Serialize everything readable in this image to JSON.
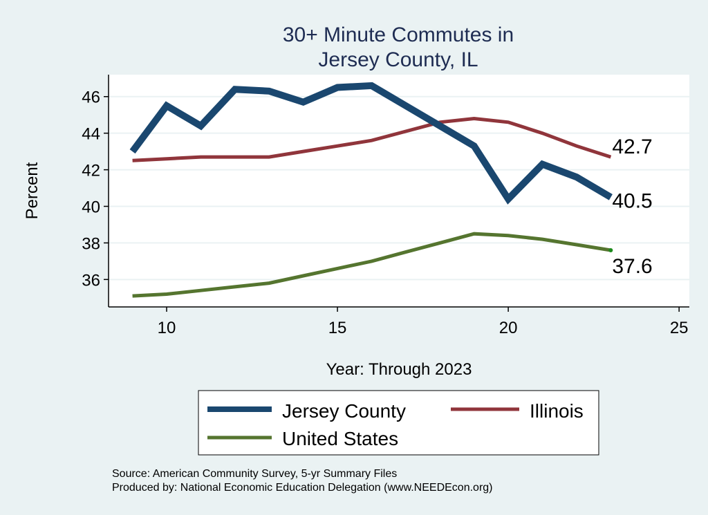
{
  "chart_data": {
    "type": "line",
    "title": [
      "30+ Minute Commutes in",
      "Jersey County, IL"
    ],
    "xlabel": "Year: Through 2023",
    "ylabel": "Percent",
    "xlim": [
      8.3,
      25.3
    ],
    "ylim": [
      34.5,
      47.2
    ],
    "xticks": [
      10,
      15,
      20,
      25
    ],
    "yticks": [
      36,
      38,
      40,
      42,
      44,
      46
    ],
    "grid": true,
    "x": [
      9,
      10,
      11,
      12,
      13,
      14,
      15,
      16,
      17,
      18,
      19,
      20,
      21,
      22,
      23
    ],
    "series": [
      {
        "name": "Jersey County",
        "color": "#1a476f",
        "values": [
          43.0,
          45.5,
          44.4,
          46.4,
          46.3,
          45.7,
          46.5,
          46.6,
          45.5,
          44.4,
          43.3,
          40.4,
          42.3,
          41.6,
          40.5
        ],
        "end_label": "40.5"
      },
      {
        "name": "Illinois",
        "color": "#90353b",
        "values": [
          42.5,
          42.6,
          42.7,
          42.7,
          42.7,
          43.0,
          43.3,
          43.6,
          44.1,
          44.6,
          44.8,
          44.6,
          44.0,
          43.3,
          42.7
        ],
        "end_label": "42.7"
      },
      {
        "name": "United States",
        "color": "#55752f",
        "values": [
          35.1,
          35.2,
          35.4,
          35.6,
          35.8,
          36.2,
          36.6,
          37.0,
          37.5,
          38.0,
          38.5,
          38.4,
          38.2,
          37.9,
          37.6
        ],
        "end_label": "37.6"
      }
    ],
    "legend": {
      "position": "bottom",
      "entries": [
        "Jersey County",
        "Illinois",
        "United States"
      ]
    },
    "notes": [
      "Source: American Community Survey, 5-yr Summary Files",
      "Produced by: National Economic Education Delegation (www.NEEDEcon.org)"
    ]
  }
}
